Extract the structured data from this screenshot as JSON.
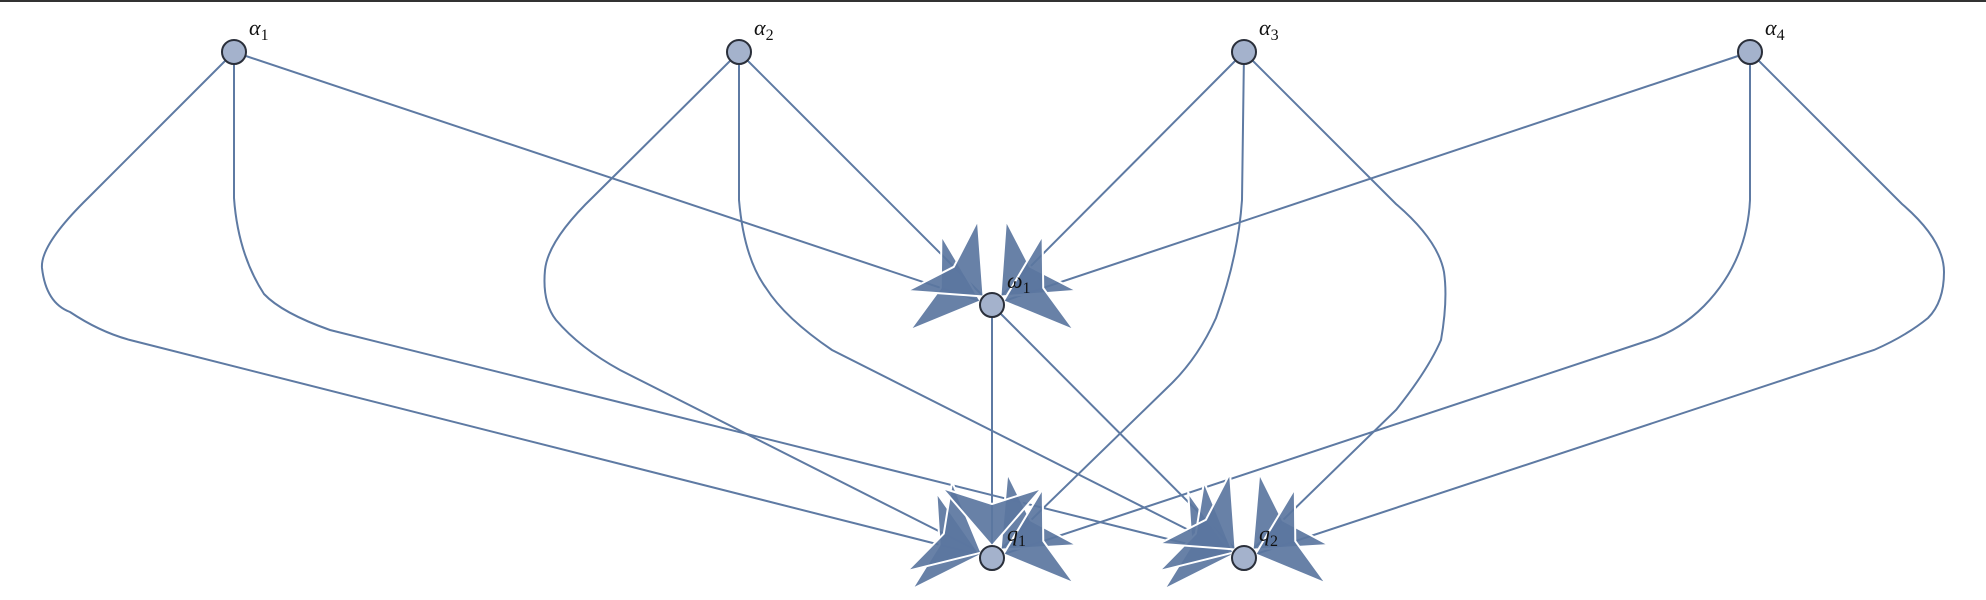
{
  "colors": {
    "edge": "#5e7aa3",
    "arrow": "#5b76a0",
    "node_fill": "#a4b2cc",
    "node_stroke": "#2a2f3a"
  },
  "nodes": [
    {
      "id": "a1",
      "symbol": "α",
      "sub": "1"
    },
    {
      "id": "a2",
      "symbol": "α",
      "sub": "2"
    },
    {
      "id": "a3",
      "symbol": "α",
      "sub": "3"
    },
    {
      "id": "a4",
      "symbol": "α",
      "sub": "4"
    },
    {
      "id": "w1",
      "symbol": "ω",
      "sub": "1"
    },
    {
      "id": "q1",
      "symbol": "q",
      "sub": "1"
    },
    {
      "id": "q2",
      "symbol": "q",
      "sub": "2"
    }
  ],
  "edges": [
    {
      "from": "a1",
      "to": "w1"
    },
    {
      "from": "a2",
      "to": "w1"
    },
    {
      "from": "a3",
      "to": "w1"
    },
    {
      "from": "a4",
      "to": "w1"
    },
    {
      "from": "a1",
      "to": "q1"
    },
    {
      "from": "a1",
      "to": "q2"
    },
    {
      "from": "a2",
      "to": "q1"
    },
    {
      "from": "a2",
      "to": "q2"
    },
    {
      "from": "a3",
      "to": "q1"
    },
    {
      "from": "a3",
      "to": "q2"
    },
    {
      "from": "a4",
      "to": "q1"
    },
    {
      "from": "a4",
      "to": "q2"
    },
    {
      "from": "w1",
      "to": "q1"
    },
    {
      "from": "w1",
      "to": "q2"
    }
  ]
}
